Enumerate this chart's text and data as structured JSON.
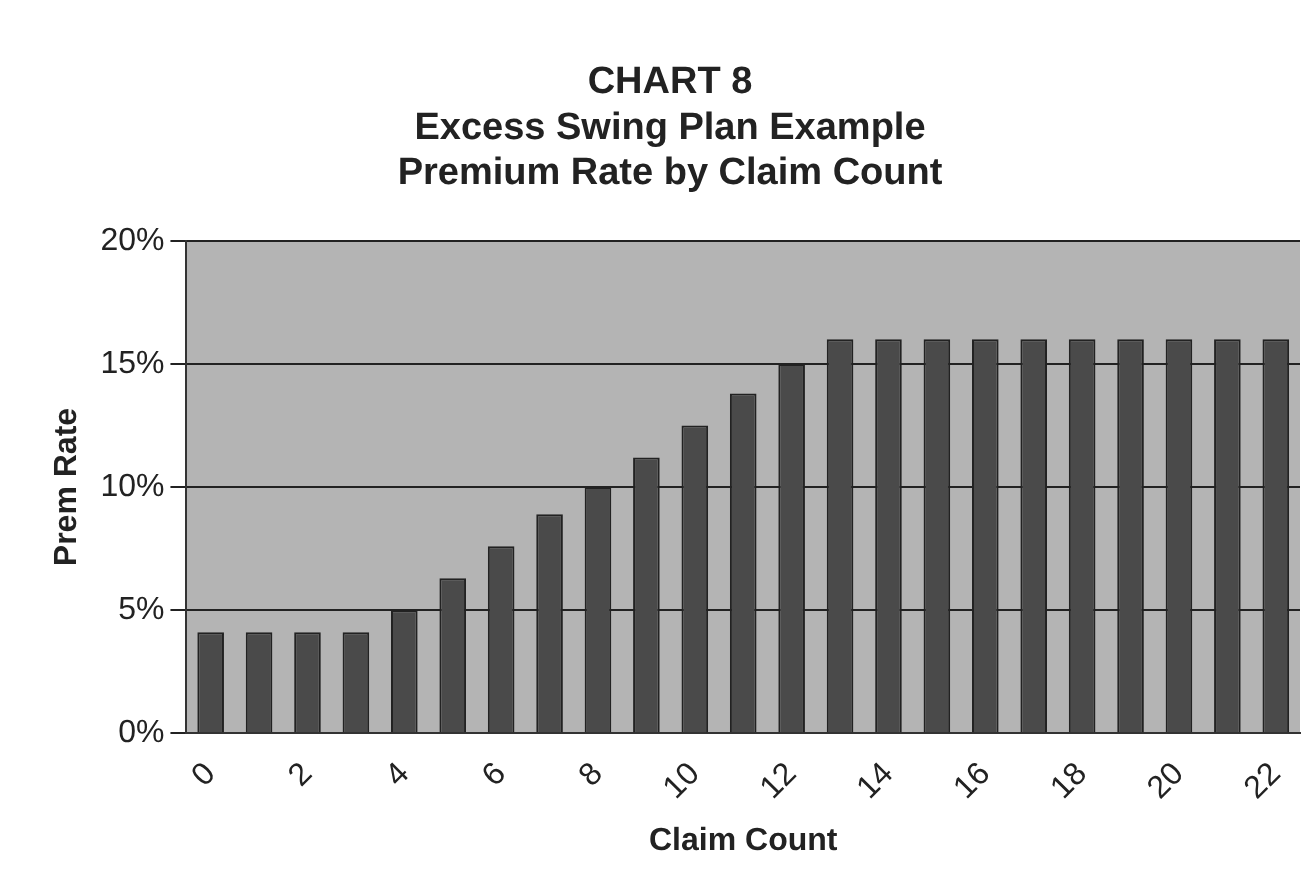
{
  "chart_data": {
    "type": "bar",
    "title": "CHART 8\nExcess Swing Plan Example\nPremium Rate by Claim Count",
    "xlabel": "Claim Count",
    "ylabel": "Prem Rate",
    "categories": [
      "0",
      null,
      "2",
      null,
      "4",
      null,
      "6",
      null,
      "8",
      null,
      "10",
      null,
      "12",
      null,
      "14",
      null,
      "16",
      null,
      "18",
      null,
      "20",
      null,
      "22"
    ],
    "values": [
      4.1,
      4.1,
      4.1,
      4.1,
      5.0,
      6.3,
      7.6,
      8.9,
      10.0,
      11.2,
      12.5,
      13.8,
      15.0,
      16,
      16,
      16,
      16,
      16,
      16,
      16,
      16,
      16,
      16
    ],
    "color": "#4a4a4a",
    "ylim": [
      0,
      20
    ],
    "yticks": [
      {
        "value": 0,
        "label": "0%"
      },
      {
        "value": 5,
        "label": "5%"
      },
      {
        "value": 10,
        "label": "10%"
      },
      {
        "value": 15,
        "label": "15%"
      },
      {
        "value": 20,
        "label": "20%"
      }
    ],
    "grid": "y",
    "legend": false
  }
}
